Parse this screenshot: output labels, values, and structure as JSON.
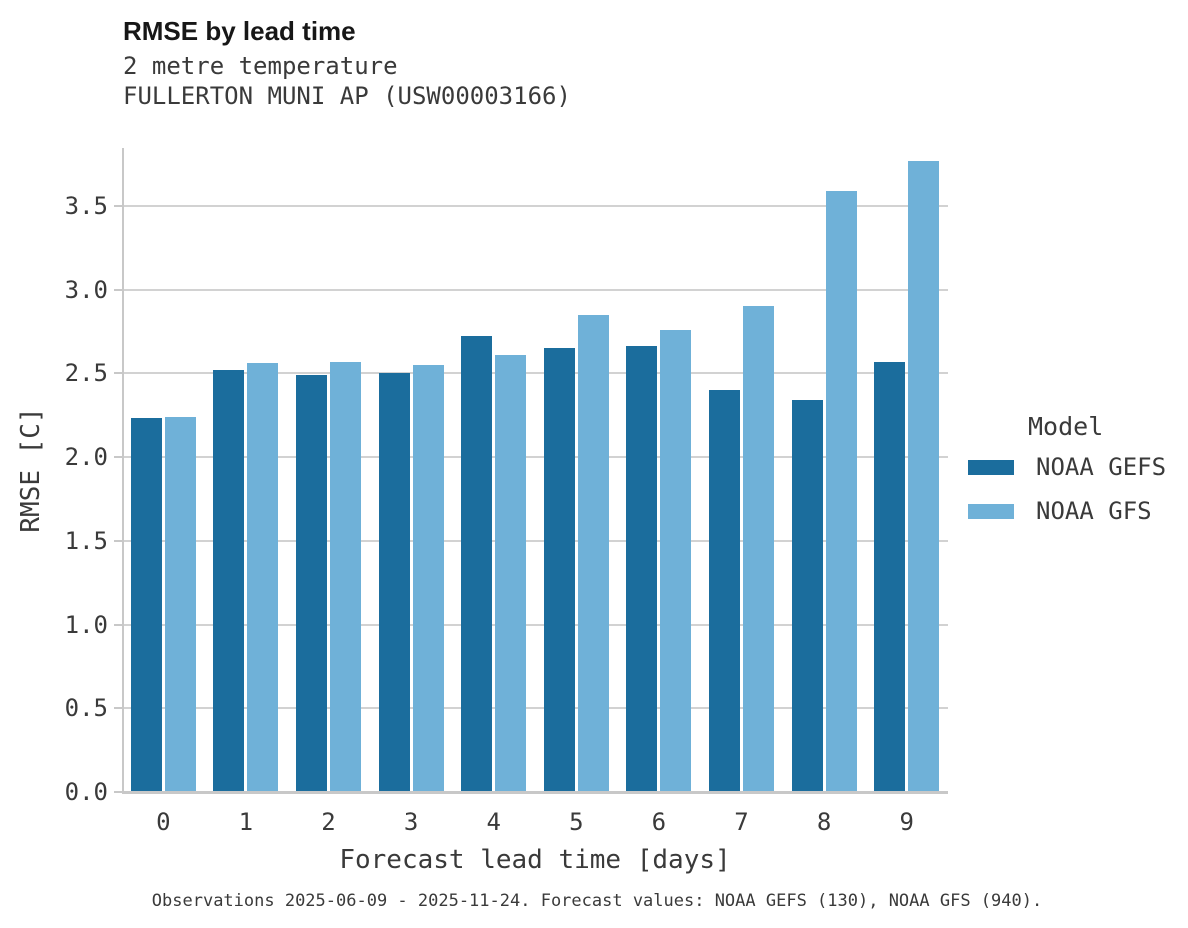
{
  "header": {
    "title": "RMSE by lead time",
    "subtitle1": "2 metre temperature",
    "subtitle2": "FULLERTON MUNI AP (USW00003166)"
  },
  "legend": {
    "title": "Model",
    "entries": [
      {
        "label": "NOAA GEFS",
        "color": "#1b6d9d"
      },
      {
        "label": "NOAA GFS",
        "color": "#6fb1d8"
      }
    ]
  },
  "caption": "Observations 2025-06-09 - 2025-11-24. Forecast values: NOAA GEFS (130), NOAA GFS (940).",
  "chart_data": {
    "type": "bar",
    "title": "RMSE by lead time",
    "subtitle": "2 metre temperature — FULLERTON MUNI AP (USW00003166)",
    "categories": [
      "0",
      "1",
      "2",
      "3",
      "4",
      "5",
      "6",
      "7",
      "8",
      "9"
    ],
    "series": [
      {
        "name": "NOAA GEFS",
        "color": "#1b6d9d",
        "values": [
          2.23,
          2.52,
          2.49,
          2.5,
          2.72,
          2.65,
          2.66,
          2.4,
          2.34,
          2.57
        ]
      },
      {
        "name": "NOAA GFS",
        "color": "#6fb1d8",
        "values": [
          2.24,
          2.56,
          2.57,
          2.55,
          2.61,
          2.85,
          2.76,
          2.9,
          3.59,
          3.77
        ]
      }
    ],
    "xlabel": "Forecast lead time [days]",
    "ylabel": "RMSE [C]",
    "ylim": [
      0,
      3.85
    ],
    "ytick_step": 0.5,
    "ytick_max": 3.5,
    "grid": "horizontal",
    "legend_position": "right",
    "grid_color": "#d2d2d2",
    "spine_color": "#c8c8c8"
  }
}
